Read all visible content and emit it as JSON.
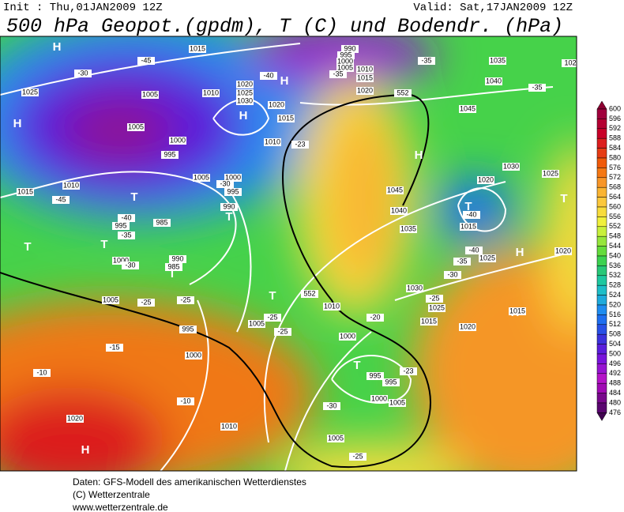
{
  "header": {
    "init": "Init : Thu,01JAN2009 12Z",
    "valid": "Valid: Sat,17JAN2009 12Z",
    "title": "500 hPa Geopot.(gpdm), T (C) und Bodendr. (hPa)"
  },
  "colorbar": {
    "ticks": [
      600,
      596,
      592,
      588,
      584,
      580,
      576,
      572,
      568,
      564,
      560,
      556,
      552,
      548,
      544,
      540,
      536,
      532,
      528,
      524,
      520,
      516,
      512,
      508,
      504,
      500,
      496,
      492,
      488,
      484,
      480,
      476
    ],
    "colors": [
      "#a0003c",
      "#b40032",
      "#c80028",
      "#dc1e1e",
      "#e63c14",
      "#f05a0a",
      "#f57814",
      "#f89628",
      "#fab432",
      "#fcc83c",
      "#f8dc3c",
      "#f0f03c",
      "#c8f03c",
      "#96e63c",
      "#64dc3c",
      "#3cd250",
      "#28c878",
      "#1ec8a0",
      "#1ebec8",
      "#1eaadc",
      "#1e8cf0",
      "#1e6ef0",
      "#2850e6",
      "#3c32dc",
      "#5a1edc",
      "#7814dc",
      "#9614d2",
      "#b414c8",
      "#a00ab4",
      "#78088c",
      "#5a0670"
    ]
  },
  "map_labels": [
    "H",
    "H",
    "H",
    "H",
    "H",
    "H",
    "H",
    "H",
    "T",
    "T",
    "T",
    "T",
    "T",
    "T",
    "T",
    "T",
    "T",
    "1015",
    "1025",
    "1005",
    "1005",
    "1000",
    "995",
    "1010",
    "1020",
    "1025",
    "1030",
    "1020",
    "1015",
    "1010",
    "1005",
    "1000",
    "995",
    "990",
    "1015",
    "1010",
    "995",
    "985",
    "1000",
    "990",
    "985",
    "1005",
    "995",
    "1000",
    "1010",
    "1020",
    "1005",
    "1010",
    "1000",
    "995",
    "995",
    "1000",
    "1005",
    "1005",
    "1015",
    "1020",
    "1025",
    "1030",
    "1035",
    "1040",
    "1045",
    "1045",
    "1040",
    "1035",
    "1030",
    "1025",
    "1020",
    "1015",
    "1025",
    "1020",
    "1015",
    "990",
    "995",
    "1000",
    "1005",
    "1010",
    "1015",
    "1020",
    "102",
    "-45",
    "-30",
    "-30",
    "-40",
    "-35",
    "-35",
    "-35",
    "-23",
    "-45",
    "-40",
    "-35",
    "-30",
    "-25",
    "-25",
    "-40",
    "-40",
    "-35",
    "-30",
    "-25",
    "-20",
    "-25",
    "-25",
    "-23",
    "-30",
    "-25",
    "-15",
    "-10",
    "-10",
    "552",
    "552"
  ],
  "footer": [
    "Daten: GFS-Modell des amerikanischen Wetterdienstes",
    "(C) Wetterzentrale",
    "www.wetterzentrale.de"
  ]
}
